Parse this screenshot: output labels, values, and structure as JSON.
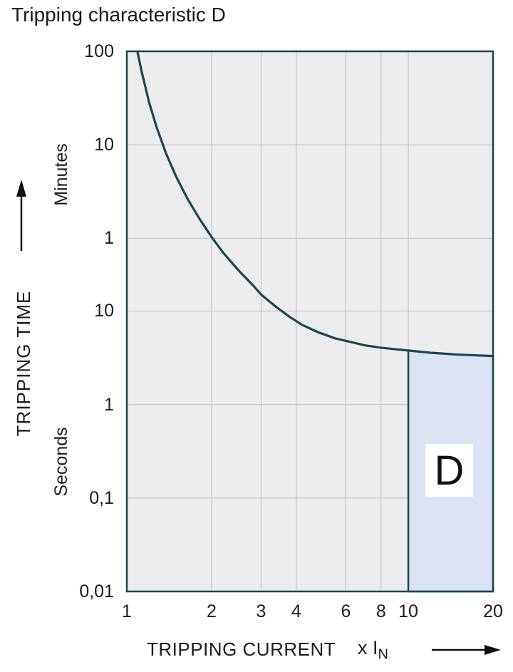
{
  "title": "Tripping characteristic D",
  "region": {
    "label": "D"
  },
  "yaxis": {
    "title": "TRIPPING TIME",
    "unit_upper": "Minutes",
    "unit_lower": "Seconds"
  },
  "xaxis": {
    "title": "TRIPPING CURRENT",
    "unit_prefix": "x I",
    "unit_sub": "N"
  },
  "chart_data": {
    "type": "line",
    "title": "Tripping characteristic D",
    "x_scale": "log",
    "y_scale": "log",
    "x_range": [
      1,
      20
    ],
    "y_range_seconds": [
      0.01,
      6000
    ],
    "xlabel": "TRIPPING CURRENT (x IN)",
    "ylabel": "TRIPPING TIME",
    "x_ticks": [
      {
        "v": 1,
        "label": "1"
      },
      {
        "v": 2,
        "label": "2"
      },
      {
        "v": 3,
        "label": "3"
      },
      {
        "v": 4,
        "label": "4"
      },
      {
        "v": 6,
        "label": "6"
      },
      {
        "v": 8,
        "label": "8"
      },
      {
        "v": 10,
        "label": "10"
      },
      {
        "v": 20,
        "label": "20"
      }
    ],
    "y_ticks": [
      {
        "seconds": 6000,
        "label": "100",
        "unit": "minutes"
      },
      {
        "seconds": 600,
        "label": "10",
        "unit": "minutes"
      },
      {
        "seconds": 60,
        "label": "1",
        "unit": "minutes"
      },
      {
        "seconds": 10,
        "label": "10",
        "unit": "seconds"
      },
      {
        "seconds": 1,
        "label": "1",
        "unit": "seconds"
      },
      {
        "seconds": 0.1,
        "label": "0,1",
        "unit": "seconds"
      },
      {
        "seconds": 0.01,
        "label": "0,01",
        "unit": "seconds"
      }
    ],
    "grid_x": [
      2,
      3,
      4,
      6,
      8,
      10
    ],
    "grid_y_seconds": [
      600,
      60,
      10,
      1,
      0.1
    ],
    "series": [
      {
        "name": "D tripping curve",
        "points": [
          [
            1.09,
            6000
          ],
          [
            1.13,
            3600
          ],
          [
            1.2,
            1700
          ],
          [
            1.28,
            900
          ],
          [
            1.38,
            480
          ],
          [
            1.5,
            270
          ],
          [
            1.65,
            155
          ],
          [
            1.82,
            95
          ],
          [
            2.0,
            62
          ],
          [
            2.2,
            42
          ],
          [
            2.5,
            27
          ],
          [
            2.8,
            19
          ],
          [
            3.0,
            15
          ],
          [
            3.4,
            11
          ],
          [
            3.8,
            8.6
          ],
          [
            4.2,
            7.1
          ],
          [
            4.8,
            5.9
          ],
          [
            5.5,
            5.1
          ],
          [
            6.0,
            4.8
          ],
          [
            7.0,
            4.3
          ],
          [
            8.0,
            4.05
          ],
          [
            9.0,
            3.9
          ],
          [
            10.0,
            3.78
          ],
          [
            12.0,
            3.58
          ],
          [
            15.0,
            3.42
          ],
          [
            20.0,
            3.3
          ]
        ]
      }
    ],
    "shaded_region": {
      "label": "D",
      "x_from": 10,
      "x_to": 20,
      "y_bottom_seconds": 0.01,
      "top_follows_curve": true
    },
    "legend": "none",
    "grid": "on",
    "colors": {
      "curve": "#19474f",
      "plot_bg": "#ececec",
      "grid": "#bfbfbf",
      "region_fill": "#dbe3f2",
      "axis_text": "#1c1c1c"
    }
  }
}
